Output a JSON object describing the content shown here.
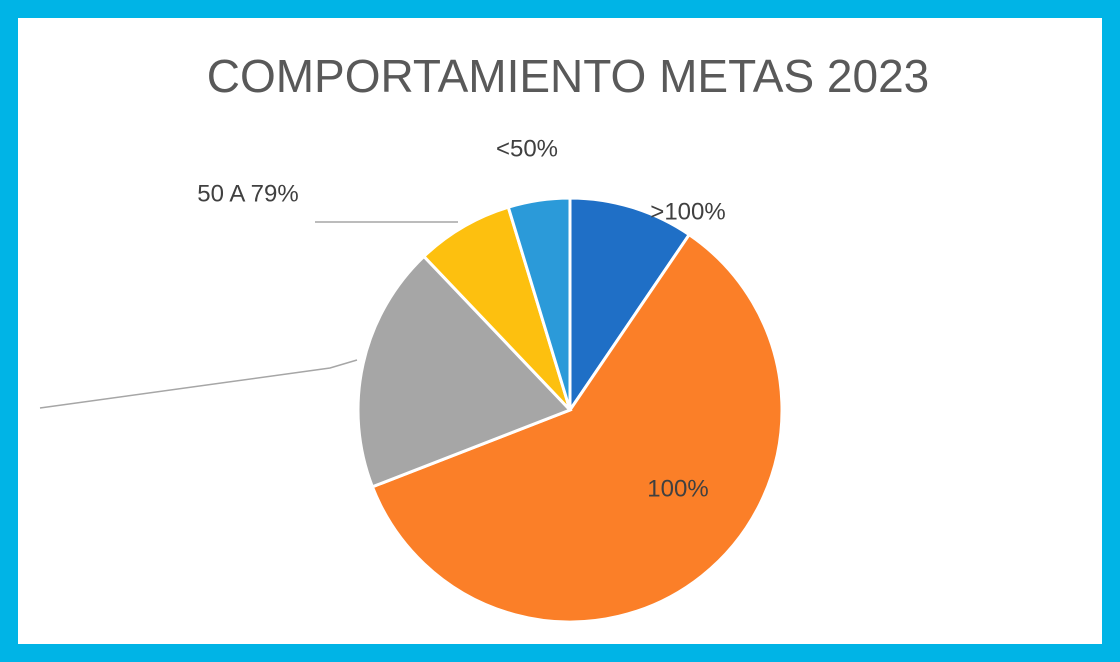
{
  "chart_data": {
    "type": "pie",
    "title": "COMPORTAMIENTO METAS 2023",
    "categories": [
      ">100%",
      "100%",
      null,
      "50 A 79%",
      "<50%"
    ],
    "values": [
      9.5,
      59.6,
      18.8,
      7.4,
      4.7
    ],
    "colors": [
      "#1f6fc6",
      "#fb7f28",
      "#a6a6a6",
      "#fdc00f",
      "#2b9ad9"
    ]
  }
}
